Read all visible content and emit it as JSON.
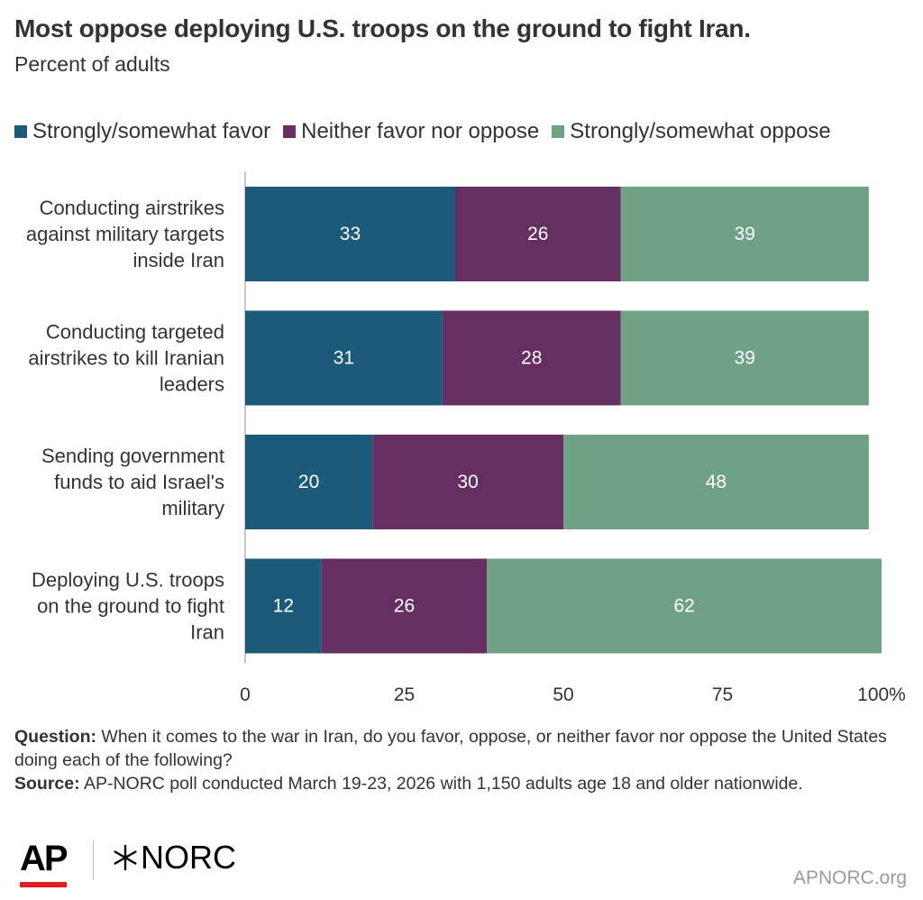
{
  "header": {
    "title": "Most oppose deploying U.S. troops on the ground to fight Iran.",
    "subtitle": "Percent of adults"
  },
  "colors": {
    "favor": "#1b5b79",
    "neither": "#652f62",
    "oppose": "#6fa285",
    "text": "#333333",
    "axis": "#888888",
    "grid": "#d0d0d0"
  },
  "chart_data": {
    "type": "bar",
    "orientation": "horizontal",
    "stacked": true,
    "categories": [
      [
        "Conducting airstrikes",
        "against military targets",
        "inside Iran"
      ],
      [
        "Conducting targeted",
        "airstrikes to kill Iranian",
        "leaders"
      ],
      [
        "Sending government",
        "funds to aid Israel's",
        "military"
      ],
      [
        "Deploying U.S. troops",
        "on the ground to fight",
        "Iran"
      ]
    ],
    "series": [
      {
        "name": "Strongly/somewhat favor",
        "values": [
          33,
          31,
          20,
          12
        ],
        "color": "#1b5b79"
      },
      {
        "name": "Neither favor nor oppose",
        "values": [
          26,
          28,
          30,
          26
        ],
        "color": "#652f62"
      },
      {
        "name": "Strongly/somewhat oppose",
        "values": [
          39,
          39,
          48,
          62
        ],
        "color": "#6fa285"
      }
    ],
    "xlim": [
      0,
      100
    ],
    "xticks": [
      "0",
      "25",
      "50",
      "75",
      "100%"
    ],
    "xtick_values": [
      0,
      25,
      50,
      75,
      100
    ],
    "legend_position": "top"
  },
  "footer": {
    "question_label": "Question:",
    "question_text": "When it comes to the war in Iran, do you favor, oppose, or neither favor nor oppose the United States doing each of the following?",
    "source_label": "Source:",
    "source_text": "AP-NORC poll conducted March 19-23, 2026 with 1,150 adults age 18 and older nationwide."
  },
  "branding": {
    "ap_logo": "AP",
    "norc_logo": "NORC",
    "website": "APNORC.org"
  }
}
